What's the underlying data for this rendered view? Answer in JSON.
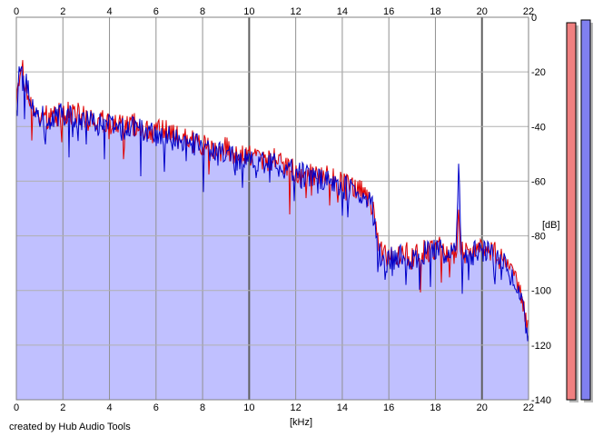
{
  "chart_data": {
    "type": "area",
    "title": "",
    "xlabel": "[kHz]",
    "ylabel": "[dB]",
    "xlim": [
      0,
      22
    ],
    "ylim": [
      -140,
      0
    ],
    "x_ticks": [
      0,
      2,
      4,
      6,
      8,
      10,
      12,
      14,
      16,
      18,
      20,
      22
    ],
    "x_tick_labels": [
      "0",
      "2",
      "4",
      "6",
      "8",
      "10",
      "12",
      "14",
      "16",
      "18",
      "20",
      "22"
    ],
    "y_ticks": [
      0,
      -20,
      -40,
      -60,
      -80,
      -100,
      -120,
      -140
    ],
    "y_tick_labels": [
      "0",
      "-20",
      "-40",
      "-60",
      "-80",
      "-100",
      "-120",
      "-140"
    ],
    "grid": true,
    "legend": "none",
    "x": [
      0,
      0.1,
      0.2,
      0.4,
      0.7,
      1,
      1.5,
      2,
      2.5,
      3,
      3.5,
      4,
      4.5,
      5,
      5.5,
      6,
      6.5,
      7,
      7.5,
      8,
      8.5,
      9,
      9.5,
      10,
      10.5,
      11,
      11.5,
      12,
      12.5,
      13,
      13.5,
      14,
      14.5,
      15,
      15.3,
      15.5,
      15.7,
      16,
      16.5,
      17,
      17.5,
      18,
      18.5,
      18.9,
      19,
      19.1,
      19.5,
      20,
      20.5,
      21,
      21.5,
      22
    ],
    "series": [
      {
        "values": [
          -28,
          -22,
          -17,
          -25,
          -35,
          -37,
          -36,
          -35,
          -35,
          -37,
          -38,
          -39,
          -40,
          -39,
          -41,
          -42,
          -42,
          -44,
          -45,
          -47,
          -49,
          -48,
          -51,
          -50,
          -52,
          -52,
          -54,
          -56,
          -57,
          -58,
          -59,
          -61,
          -63,
          -64,
          -69,
          -82,
          -87,
          -88,
          -86,
          -87,
          -86,
          -84,
          -85,
          -87,
          -70,
          -86,
          -86,
          -84,
          -86,
          -90,
          -97,
          -115
        ],
        "color": "#e00000"
      },
      {
        "values": [
          -30,
          -20,
          -16,
          -24,
          -34,
          -36,
          -36,
          -36,
          -37,
          -38,
          -39,
          -40,
          -41,
          -40,
          -42,
          -43,
          -44,
          -45,
          -46,
          -48,
          -50,
          -50,
          -52,
          -51,
          -53,
          -53,
          -55,
          -57,
          -58,
          -59,
          -60,
          -62,
          -64,
          -65,
          -70,
          -84,
          -89,
          -89,
          -87,
          -88,
          -86,
          -85,
          -86,
          -86,
          -48,
          -85,
          -87,
          -85,
          -87,
          -91,
          -98,
          -117
        ],
        "color": "#0000c8"
      }
    ],
    "fill_color": "#c0c0ff",
    "meters": [
      {
        "level": -2,
        "color": "#f08080"
      },
      {
        "level": -1,
        "color": "#8080f0"
      }
    ]
  },
  "footer": {
    "credit": "created by Hub Audio Tools"
  }
}
